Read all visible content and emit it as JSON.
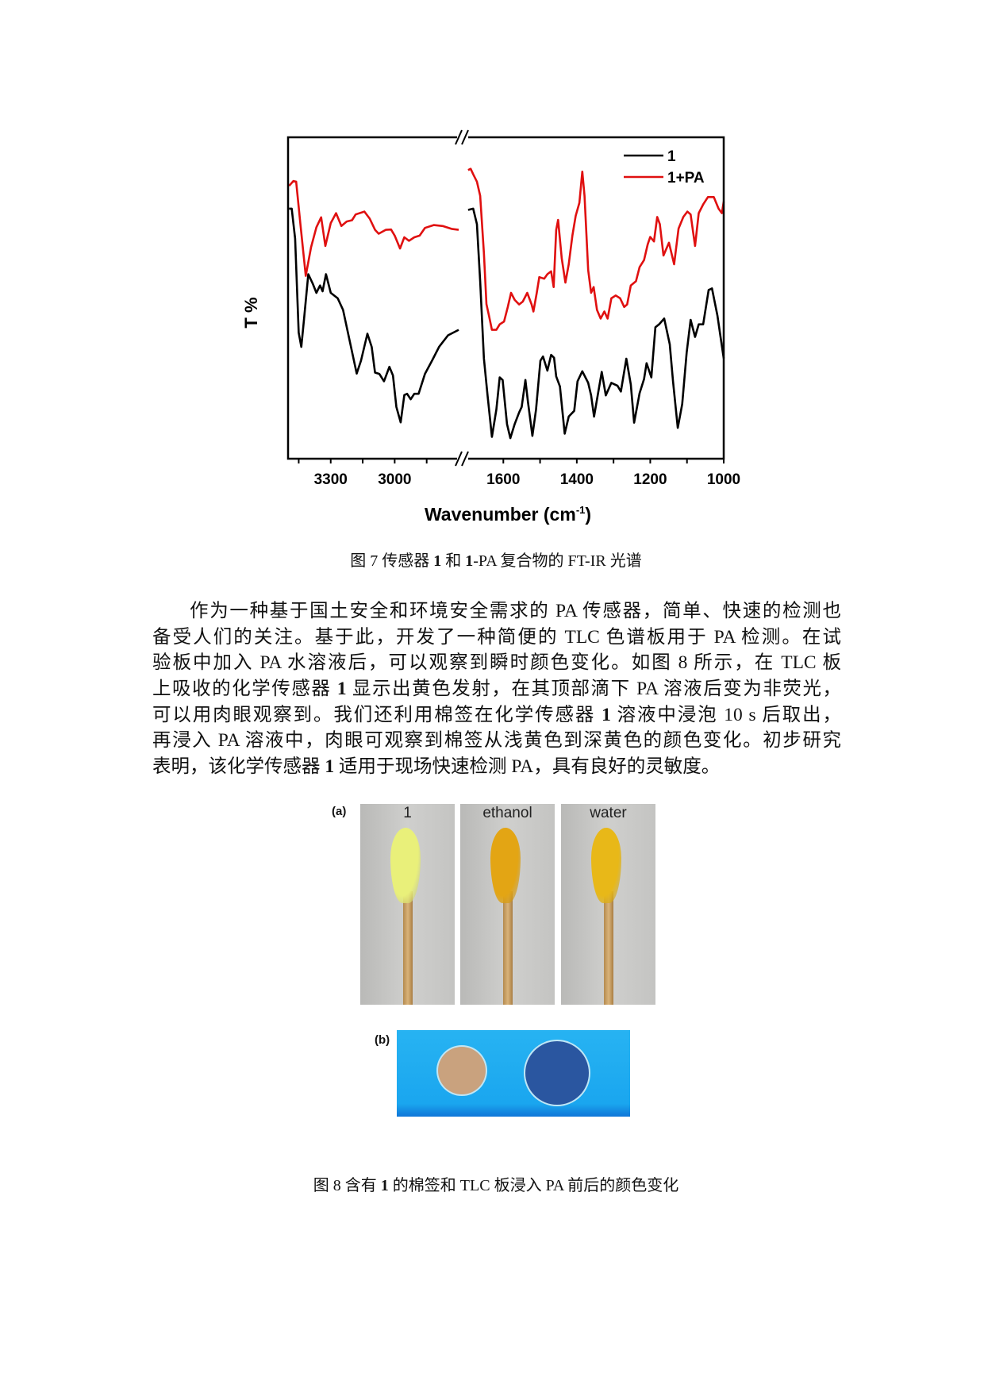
{
  "figure7": {
    "chart_data": {
      "type": "line",
      "xlabel": "Wavenumber (cm",
      "xlabel_sup": "-1",
      "xlabel_close": ")",
      "ylabel": "T %",
      "x_segments": [
        [
          3500,
          2700
        ],
        [
          1700,
          1000
        ]
      ],
      "x_tick_labels": [
        [
          "3300",
          "3000"
        ],
        [
          "1600",
          "1400",
          "1200",
          "1000"
        ]
      ],
      "x_major_ticks": [
        [
          3450,
          3300,
          3150,
          3000,
          2850
        ],
        [
          1700,
          1600,
          1500,
          1400,
          1300,
          1200,
          1100,
          1000
        ]
      ],
      "y_range": [
        0,
        100
      ],
      "y_ticks_shown": false,
      "axis_break": true,
      "legend_position": "top-right",
      "grid": false,
      "series": [
        {
          "name": "1",
          "color": "#000000",
          "points": [
            [
              3495,
              77.8
            ],
            [
              3483,
              77.8
            ],
            [
              3467,
              68.5
            ],
            [
              3450,
              39.2
            ],
            [
              3438,
              34.8
            ],
            [
              3425,
              43.6
            ],
            [
              3405,
              57.4
            ],
            [
              3383,
              54.3
            ],
            [
              3367,
              51.6
            ],
            [
              3350,
              53.9
            ],
            [
              3338,
              52.1
            ],
            [
              3322,
              57.4
            ],
            [
              3300,
              51.6
            ],
            [
              3267,
              49.9
            ],
            [
              3242,
              46.3
            ],
            [
              3208,
              35.7
            ],
            [
              3178,
              26.5
            ],
            [
              3158,
              30.5
            ],
            [
              3128,
              38.9
            ],
            [
              3108,
              34.8
            ],
            [
              3092,
              26.8
            ],
            [
              3072,
              26.4
            ],
            [
              3050,
              24.1
            ],
            [
              3025,
              28.6
            ],
            [
              3008,
              25.9
            ],
            [
              2992,
              16.1
            ],
            [
              2972,
              11.3
            ],
            [
              2955,
              19.8
            ],
            [
              2942,
              20.2
            ],
            [
              2925,
              18.5
            ],
            [
              2908,
              20.2
            ],
            [
              2888,
              20.2
            ],
            [
              2858,
              26.4
            ],
            [
              2825,
              30.5
            ],
            [
              2792,
              34.8
            ],
            [
              2750,
              38.4
            ],
            [
              2700,
              40.1
            ],
            [
              1696,
              77.4
            ],
            [
              1682,
              77.8
            ],
            [
              1672,
              73.0
            ],
            [
              1663,
              55.2
            ],
            [
              1653,
              31.2
            ],
            [
              1643,
              19.7
            ],
            [
              1631,
              6.8
            ],
            [
              1619,
              15.3
            ],
            [
              1610,
              25.3
            ],
            [
              1602,
              24.5
            ],
            [
              1590,
              10.8
            ],
            [
              1581,
              6.4
            ],
            [
              1569,
              10.8
            ],
            [
              1557,
              14.4
            ],
            [
              1550,
              16.1
            ],
            [
              1540,
              24.5
            ],
            [
              1533,
              17.7
            ],
            [
              1521,
              7.1
            ],
            [
              1511,
              15.3
            ],
            [
              1499,
              30.5
            ],
            [
              1492,
              31.8
            ],
            [
              1480,
              27.4
            ],
            [
              1470,
              32.3
            ],
            [
              1462,
              31.4
            ],
            [
              1456,
              25.6
            ],
            [
              1446,
              22.5
            ],
            [
              1433,
              7.8
            ],
            [
              1422,
              13.1
            ],
            [
              1407,
              14.9
            ],
            [
              1398,
              24.1
            ],
            [
              1385,
              27.2
            ],
            [
              1369,
              23.6
            ],
            [
              1361,
              19.7
            ],
            [
              1353,
              13.1
            ],
            [
              1343,
              19.7
            ],
            [
              1332,
              27.0
            ],
            [
              1321,
              19.7
            ],
            [
              1306,
              23.6
            ],
            [
              1289,
              22.7
            ],
            [
              1280,
              20.9
            ],
            [
              1265,
              31.1
            ],
            [
              1253,
              23.1
            ],
            [
              1244,
              11.2
            ],
            [
              1229,
              20.4
            ],
            [
              1217,
              24.8
            ],
            [
              1210,
              29.7
            ],
            [
              1197,
              25.3
            ],
            [
              1186,
              40.9
            ],
            [
              1176,
              41.8
            ],
            [
              1162,
              43.6
            ],
            [
              1147,
              35.6
            ],
            [
              1138,
              24.1
            ],
            [
              1125,
              9.6
            ],
            [
              1113,
              17.0
            ],
            [
              1101,
              33.0
            ],
            [
              1090,
              43.2
            ],
            [
              1078,
              37.9
            ],
            [
              1068,
              41.8
            ],
            [
              1056,
              41.8
            ],
            [
              1041,
              52.5
            ],
            [
              1032,
              53.0
            ],
            [
              1017,
              44.5
            ],
            [
              1008,
              37.4
            ],
            [
              1000,
              31.2
            ]
          ]
        },
        {
          "name": "1+PA",
          "color": "#e01010",
          "points": [
            [
              3495,
              84.9
            ],
            [
              3475,
              86.4
            ],
            [
              3462,
              86.2
            ],
            [
              3442,
              72.9
            ],
            [
              3417,
              56.9
            ],
            [
              3392,
              65.8
            ],
            [
              3367,
              72.0
            ],
            [
              3345,
              75.1
            ],
            [
              3325,
              66.2
            ],
            [
              3300,
              73.3
            ],
            [
              3275,
              76.4
            ],
            [
              3250,
              72.4
            ],
            [
              3225,
              73.8
            ],
            [
              3200,
              74.2
            ],
            [
              3183,
              76.0
            ],
            [
              3142,
              76.9
            ],
            [
              3117,
              74.7
            ],
            [
              3092,
              71.2
            ],
            [
              3075,
              70.0
            ],
            [
              3042,
              71.2
            ],
            [
              3017,
              71.3
            ],
            [
              3000,
              69.4
            ],
            [
              2975,
              65.4
            ],
            [
              2955,
              68.9
            ],
            [
              2933,
              67.8
            ],
            [
              2908,
              68.9
            ],
            [
              2883,
              69.4
            ],
            [
              2858,
              71.8
            ],
            [
              2817,
              72.7
            ],
            [
              2775,
              72.4
            ],
            [
              2733,
              71.5
            ],
            [
              2700,
              71.2
            ],
            [
              1696,
              89.8
            ],
            [
              1689,
              90.2
            ],
            [
              1682,
              88.5
            ],
            [
              1672,
              86.2
            ],
            [
              1663,
              81.8
            ],
            [
              1653,
              64.0
            ],
            [
              1646,
              48.1
            ],
            [
              1639,
              44.5
            ],
            [
              1631,
              40.1
            ],
            [
              1619,
              40.1
            ],
            [
              1610,
              41.8
            ],
            [
              1598,
              42.7
            ],
            [
              1588,
              47.1
            ],
            [
              1579,
              51.6
            ],
            [
              1569,
              49.4
            ],
            [
              1557,
              48.0
            ],
            [
              1547,
              48.9
            ],
            [
              1535,
              51.6
            ],
            [
              1523,
              48.0
            ],
            [
              1518,
              45.8
            ],
            [
              1509,
              51.6
            ],
            [
              1502,
              56.5
            ],
            [
              1489,
              56.0
            ],
            [
              1480,
              57.4
            ],
            [
              1470,
              58.3
            ],
            [
              1463,
              53.4
            ],
            [
              1456,
              71.2
            ],
            [
              1451,
              74.3
            ],
            [
              1441,
              62.3
            ],
            [
              1431,
              54.8
            ],
            [
              1422,
              60.5
            ],
            [
              1412,
              69.4
            ],
            [
              1403,
              75.6
            ],
            [
              1393,
              79.6
            ],
            [
              1385,
              89.3
            ],
            [
              1379,
              81.8
            ],
            [
              1369,
              58.7
            ],
            [
              1361,
              51.6
            ],
            [
              1354,
              53.4
            ],
            [
              1345,
              46.3
            ],
            [
              1335,
              43.6
            ],
            [
              1325,
              45.8
            ],
            [
              1316,
              43.6
            ],
            [
              1306,
              49.9
            ],
            [
              1294,
              50.8
            ],
            [
              1282,
              49.9
            ],
            [
              1271,
              47.2
            ],
            [
              1263,
              48.0
            ],
            [
              1253,
              53.9
            ],
            [
              1239,
              55.2
            ],
            [
              1229,
              59.6
            ],
            [
              1217,
              61.8
            ],
            [
              1207,
              66.7
            ],
            [
              1200,
              69.0
            ],
            [
              1190,
              67.6
            ],
            [
              1181,
              75.2
            ],
            [
              1174,
              73.0
            ],
            [
              1164,
              63.2
            ],
            [
              1149,
              67.2
            ],
            [
              1135,
              60.5
            ],
            [
              1123,
              71.6
            ],
            [
              1110,
              75.2
            ],
            [
              1099,
              76.9
            ],
            [
              1090,
              76.0
            ],
            [
              1078,
              66.2
            ],
            [
              1068,
              76.4
            ],
            [
              1056,
              79.1
            ],
            [
              1043,
              81.4
            ],
            [
              1027,
              81.4
            ],
            [
              1014,
              77.8
            ],
            [
              1005,
              76.4
            ],
            [
              1000,
              80.0
            ]
          ]
        }
      ]
    },
    "caption": [
      {
        "t": "图 7 传感器 ",
        "b": false
      },
      {
        "t": "1",
        "b": true
      },
      {
        "t": " 和 ",
        "b": false
      },
      {
        "t": "1",
        "b": true
      },
      {
        "t": "-PA 复合物的 FT-IR 光谱",
        "b": false
      }
    ]
  },
  "paragraph": [
    [
      {
        "t": "作为一种基于国土安全和环境安全需求的 PA 传感器，简单、快速的检测也",
        "b": false
      }
    ],
    [
      {
        "t": "备受人们的关注。基于此，开发了一种简便的 TLC 色谱板用于 PA 检测。在试",
        "b": false
      }
    ],
    [
      {
        "t": "验板中加入 PA 水溶液后，可以观察到瞬时颜色变化。如图 8 所示，在 TLC 板",
        "b": false
      }
    ],
    [
      {
        "t": "上吸收的化学传感器 ",
        "b": false
      },
      {
        "t": "1",
        "b": true
      },
      {
        "t": " 显示出黄色发射，在其顶部滴下 PA 溶液后变为非荧光，",
        "b": false
      }
    ],
    [
      {
        "t": "可以用肉眼观察到。我们还利用棉签在化学传感器 ",
        "b": false
      },
      {
        "t": "1",
        "b": true
      },
      {
        "t": " 溶液中浸泡 10 s 后取出，",
        "b": false
      }
    ],
    [
      {
        "t": "再浸入 PA 溶液中，肉眼可观察到棉签从浅黄色到深黄色的颜色变化。初步研究",
        "b": false
      }
    ],
    [
      {
        "t": "表明，该化学传感器 ",
        "b": false
      },
      {
        "t": "1",
        "b": true
      },
      {
        "t": " 适用于现场快速检测 PA，具有良好的灵敏度。",
        "b": false
      }
    ]
  ],
  "figure8": {
    "panel_a_label": "(a)",
    "panel_b_label": "(b)",
    "photos": [
      {
        "label": "1",
        "swab_color": "#e9f07a"
      },
      {
        "label": "ethanol",
        "swab_color": "#e3a514"
      },
      {
        "label": "water",
        "swab_color": "#e8b818"
      }
    ],
    "plate_spots": [
      {
        "color": "#c9a27e"
      },
      {
        "color": "#2a56a0"
      }
    ],
    "caption": [
      {
        "t": "图 8 含有 ",
        "b": false
      },
      {
        "t": "1",
        "b": true
      },
      {
        "t": " 的棉签和 TLC 板浸入 PA 前后的颜色变化",
        "b": false
      }
    ]
  }
}
